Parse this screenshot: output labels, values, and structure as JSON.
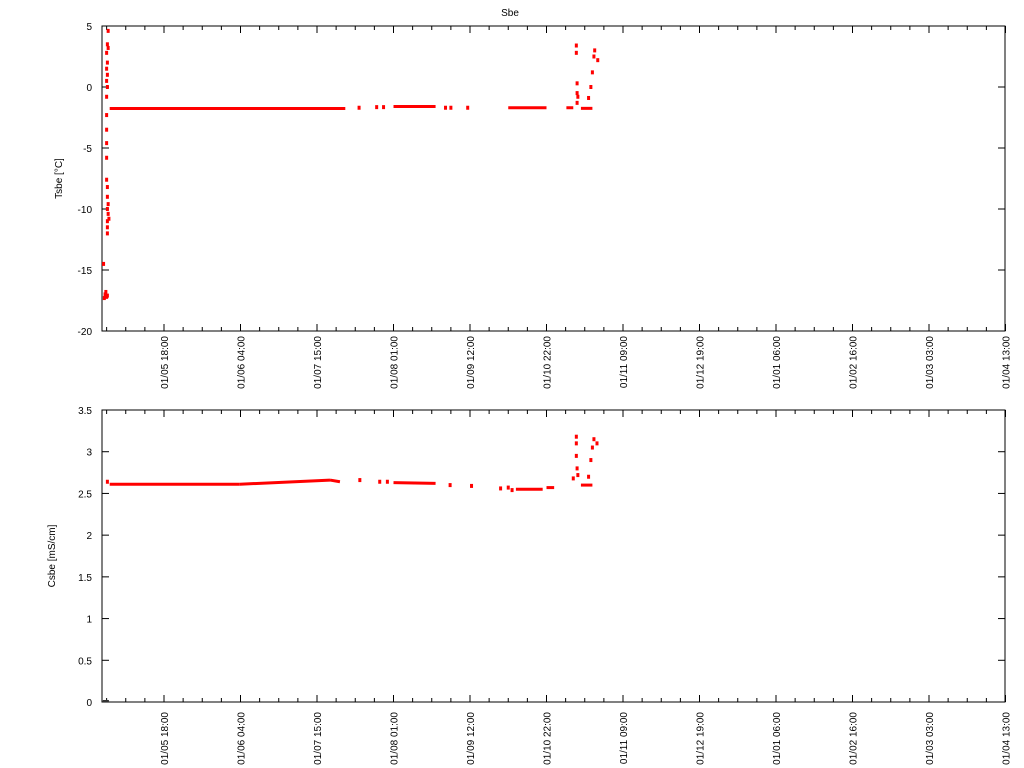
{
  "chart_data": [
    {
      "type": "scatter",
      "title": "Sbe",
      "xlabel": "",
      "ylabel": "Tsbe [°C]",
      "ylim": [
        -20,
        5
      ],
      "yticks": [
        5,
        0,
        -5,
        -10,
        -15,
        -20
      ],
      "xticks": [
        "01/05 18:00",
        "01/06 04:00",
        "01/07 15:00",
        "01/08 01:00",
        "01/09 12:00",
        "01/10 22:00",
        "01/11 09:00",
        "01/12 19:00",
        "01/01 06:00",
        "01/02 16:00",
        "01/03 03:00",
        "01/04 13:00"
      ],
      "xlim": [
        -0.81,
        11
      ],
      "grid": false,
      "color": "#ff0000",
      "segments": [
        [
          -0.71,
          -1.76,
          2.37,
          -1.76
        ],
        [
          3.0,
          -1.6,
          3.55,
          -1.6
        ],
        [
          4.5,
          -1.7,
          5.0,
          -1.7
        ],
        [
          5.26,
          -1.7,
          5.35,
          -1.7
        ],
        [
          5.45,
          -1.75,
          5.6,
          -1.75
        ]
      ],
      "points": [
        [
          -0.79,
          -14.5
        ],
        [
          -0.78,
          -17.3
        ],
        [
          -0.77,
          -17.0
        ],
        [
          -0.76,
          -16.8
        ],
        [
          -0.75,
          -17.2
        ],
        [
          -0.74,
          -17.1
        ],
        [
          -0.73,
          4.6
        ],
        [
          -0.74,
          3.5
        ],
        [
          -0.73,
          3.2
        ],
        [
          -0.75,
          2.8
        ],
        [
          -0.74,
          2.0
        ],
        [
          -0.75,
          1.5
        ],
        [
          -0.74,
          1.0
        ],
        [
          -0.75,
          0.5
        ],
        [
          -0.74,
          0.0
        ],
        [
          -0.75,
          -0.8
        ],
        [
          -0.75,
          -2.3
        ],
        [
          -0.75,
          -3.5
        ],
        [
          -0.75,
          -4.6
        ],
        [
          -0.75,
          -5.8
        ],
        [
          -0.75,
          -7.6
        ],
        [
          -0.74,
          -8.2
        ],
        [
          -0.74,
          -9.0
        ],
        [
          -0.73,
          -9.6
        ],
        [
          -0.74,
          -10.0
        ],
        [
          -0.73,
          -10.4
        ],
        [
          -0.74,
          -11.0
        ],
        [
          -0.74,
          -11.5
        ],
        [
          -0.74,
          -12.0
        ],
        [
          -0.72,
          -10.8
        ],
        [
          2.55,
          -1.7
        ],
        [
          2.78,
          -1.65
        ],
        [
          2.87,
          -1.65
        ],
        [
          3.68,
          -1.7
        ],
        [
          3.75,
          -1.7
        ],
        [
          3.97,
          -1.7
        ],
        [
          5.4,
          -1.3
        ],
        [
          5.39,
          3.4
        ],
        [
          5.39,
          2.8
        ],
        [
          5.4,
          0.3
        ],
        [
          5.4,
          -0.5
        ],
        [
          5.41,
          -0.8
        ],
        [
          5.55,
          -0.9
        ],
        [
          5.58,
          0.0
        ],
        [
          5.6,
          1.2
        ],
        [
          5.62,
          2.5
        ],
        [
          5.63,
          3.0
        ],
        [
          5.67,
          2.2
        ]
      ]
    },
    {
      "type": "scatter",
      "xlabel": "",
      "ylabel": "Csbe [mS/cm]",
      "ylim": [
        0,
        3.5
      ],
      "yticks": [
        3.5,
        3,
        2.5,
        2,
        1.5,
        1,
        0.5,
        0
      ],
      "xticks": [
        "01/05 18:00",
        "01/06 04:00",
        "01/07 15:00",
        "01/08 01:00",
        "01/09 12:00",
        "01/10 22:00",
        "01/11 09:00",
        "01/12 19:00",
        "01/01 06:00",
        "01/02 16:00",
        "01/03 03:00",
        "01/04 13:00"
      ],
      "xlim": [
        -0.81,
        11
      ],
      "grid": false,
      "color": "#ff0000",
      "segments": [
        [
          -0.71,
          2.61,
          0.99,
          2.61
        ],
        [
          0.99,
          2.61,
          2.17,
          2.66
        ],
        [
          2.17,
          2.66,
          2.3,
          2.64
        ],
        [
          3.0,
          2.63,
          3.55,
          2.62
        ],
        [
          4.6,
          2.55,
          4.95,
          2.55
        ],
        [
          5.0,
          2.57,
          5.1,
          2.57
        ],
        [
          5.45,
          2.6,
          5.6,
          2.6
        ]
      ],
      "points": [
        [
          -0.74,
          2.64
        ],
        [
          2.56,
          2.66
        ],
        [
          2.82,
          2.64
        ],
        [
          2.92,
          2.64
        ],
        [
          3.74,
          2.6
        ],
        [
          4.02,
          2.59
        ],
        [
          4.4,
          2.56
        ],
        [
          4.5,
          2.57
        ],
        [
          4.55,
          2.54
        ],
        [
          5.35,
          2.68
        ],
        [
          5.39,
          3.18
        ],
        [
          5.39,
          3.1
        ],
        [
          5.39,
          2.95
        ],
        [
          5.4,
          2.8
        ],
        [
          5.41,
          2.72
        ],
        [
          5.55,
          2.7
        ],
        [
          5.58,
          2.9
        ],
        [
          5.6,
          3.05
        ],
        [
          5.62,
          3.15
        ],
        [
          5.66,
          3.1
        ]
      ],
      "baseline_points": [
        [
          -0.8,
          0
        ],
        [
          -0.72,
          0
        ]
      ]
    }
  ]
}
